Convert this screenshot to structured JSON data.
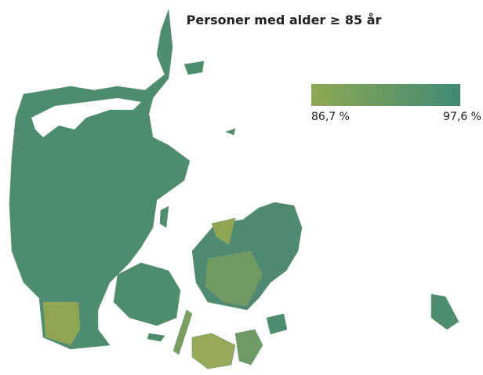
{
  "title": "Personer med alder ≥ 85 år",
  "legend": {
    "min": {
      "value": 86.7,
      "label": "86,7 %"
    },
    "max": {
      "value": 97.6,
      "label": "97,6 %"
    },
    "min_color": "#8fa852",
    "max_color": "#3f8a74"
  }
}
